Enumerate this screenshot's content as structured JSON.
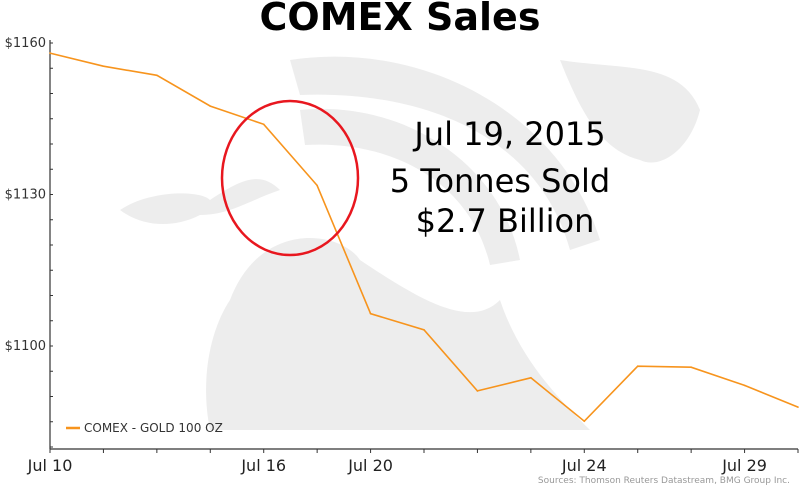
{
  "chart_data": {
    "type": "line",
    "title": "COMEX Sales",
    "xlabel": "",
    "ylabel": "",
    "x": [
      "Jul 10",
      "Jul 13",
      "Jul 14",
      "Jul 15",
      "Jul 16",
      "Jul 17",
      "Jul 20",
      "Jul 21",
      "Jul 22",
      "Jul 23",
      "Jul 24",
      "Jul 27",
      "Jul 28",
      "Jul 29",
      "Jul 30"
    ],
    "x_tick_labels": [
      {
        "date": "Jul 10",
        "label": "Jul 10"
      },
      {
        "date": "Jul 16",
        "label": "Jul 16"
      },
      {
        "date": "Jul 20",
        "label": "Jul 20"
      },
      {
        "date": "Jul 24",
        "label": "Jul 24"
      },
      {
        "date": "Jul 29",
        "label": "Jul 29"
      }
    ],
    "y_tick_labels": [
      {
        "value": 1160,
        "label": "$1160"
      },
      {
        "value": 1130,
        "label": "$1130"
      },
      {
        "value": 1100,
        "label": "$1100"
      }
    ],
    "ylim": [
      1080,
      1162
    ],
    "grid": false,
    "legend_placement": "bottom-left",
    "series": [
      {
        "name": "COMEX - GOLD 100 OZ",
        "color": "#f7941d",
        "values": [
          1158.0,
          1155.4,
          1153.6,
          1147.5,
          1143.9,
          1131.8,
          1106.4,
          1103.2,
          1091.1,
          1093.7,
          1085.1,
          1096.0,
          1095.8,
          1092.2,
          1087.9
        ]
      }
    ],
    "annotation": {
      "lines": [
        "Jul 19, 2015",
        "5 Tonnes Sold",
        "$2.7 Billion"
      ],
      "circle_color": "#e8171f",
      "circled_dates": [
        "Jul 16",
        "Jul 17"
      ]
    },
    "source": "Sources: Thomson Reuters Datastream, BMG Group Inc."
  }
}
